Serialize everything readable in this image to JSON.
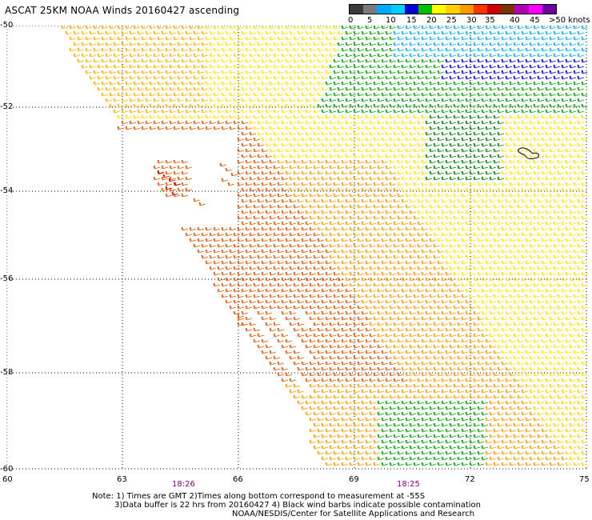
{
  "title": "ASCAT 25KM NOAA Winds 20160427 ascending",
  "legend": {
    "labels": [
      "0",
      "5",
      "10",
      "15",
      "20",
      "25",
      "30",
      "35",
      "40",
      "45",
      ">50 knots"
    ],
    "colors": [
      "#3a3a3a",
      "#7a7a7a",
      "#00a8ff",
      "#00d0ff",
      "#0000d0",
      "#00c000",
      "#ffff00",
      "#ffd000",
      "#ff9900",
      "#ff3300",
      "#cc0000",
      "#7a3300",
      "#b000b0",
      "#ff00ff",
      "#6a00a0"
    ]
  },
  "map": {
    "lat_labels": [
      "-50",
      "-52",
      "-54",
      "-56",
      "-58",
      "-60"
    ],
    "lon_labels": [
      "60",
      "63",
      "66",
      "69",
      "72",
      "75"
    ],
    "lat_range": [
      -60,
      -50
    ],
    "lon_range": [
      60,
      75
    ],
    "time_labels": [
      "18:26",
      "18:25"
    ]
  },
  "note": {
    "line1": "Note: 1) Times are GMT 2)Times along bottom correspond to measurement at -55S",
    "line2": "3)Data buffer is 22 hrs from 20160427 4) Black wind barbs indicate possible contamination",
    "line3": "NOAA/NESDIS/Center for Satellite Applications and Research"
  }
}
